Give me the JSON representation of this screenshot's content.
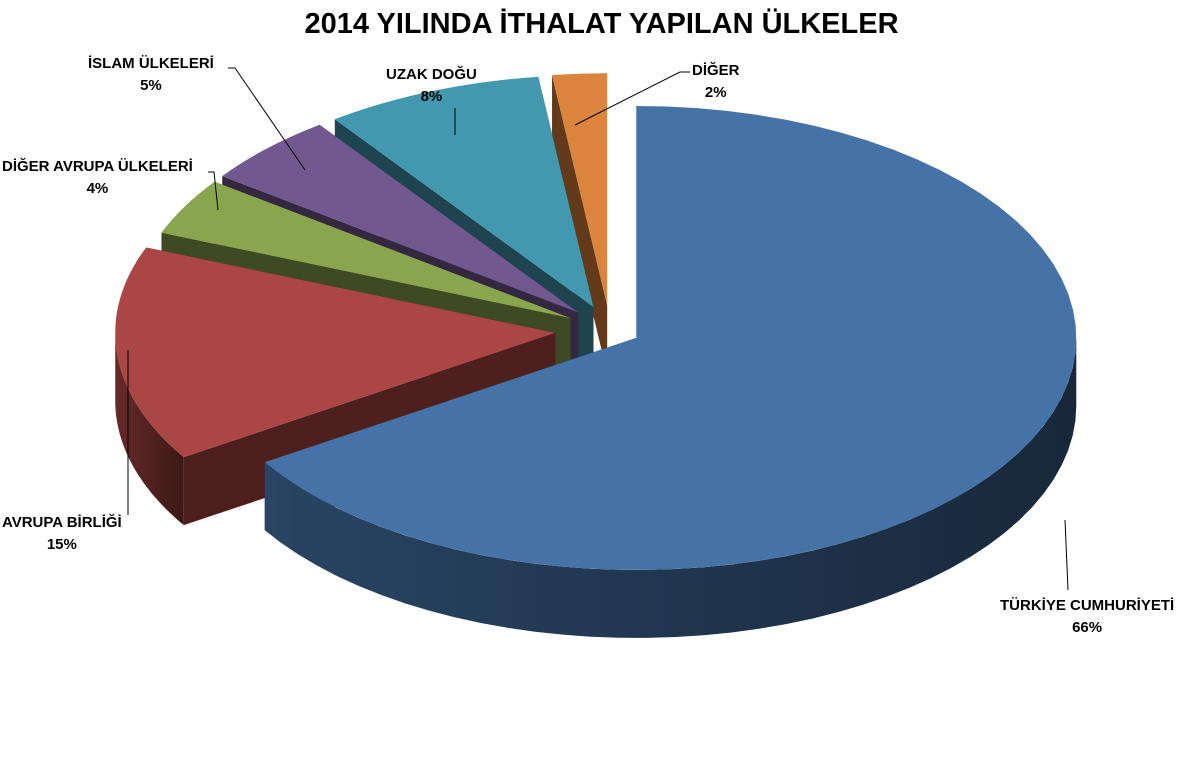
{
  "chart_data": {
    "type": "pie",
    "style": "3d-exploded",
    "title": "2014 YILINDA İTHALAT YAPILAN ÜLKELER",
    "slices": [
      {
        "label": "TÜRKİYE CUMHURİYETİ",
        "value": 66,
        "pct_label": "66%",
        "color": "#4572A7"
      },
      {
        "label": "AVRUPA BİRLİĞİ",
        "value": 15,
        "pct_label": "15%",
        "color": "#AA4643"
      },
      {
        "label": "DİĞER AVRUPA ÜLKELERİ",
        "value": 4,
        "pct_label": "4%",
        "color": "#89A54E"
      },
      {
        "label": "İSLAM ÜLKELERİ",
        "value": 5,
        "pct_label": "5%",
        "color": "#71588F"
      },
      {
        "label": "UZAK DOĞU",
        "value": 8,
        "pct_label": "8%",
        "color": "#4198AF"
      },
      {
        "label": "DİĞER",
        "value": 2,
        "pct_label": "2%",
        "color": "#DB843D"
      }
    ],
    "legend": "none"
  }
}
